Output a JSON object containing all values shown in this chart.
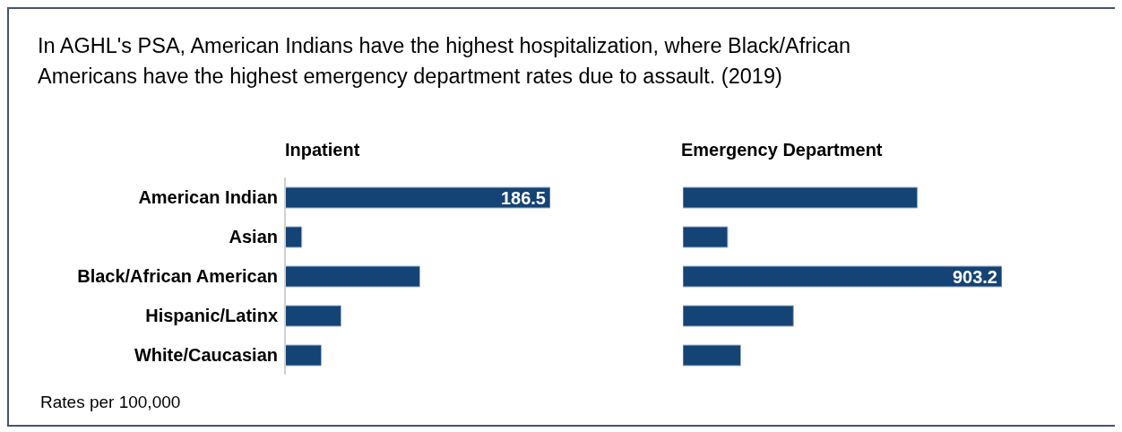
{
  "chart_data": [
    {
      "type": "bar",
      "orientation": "horizontal",
      "title": "In AGHL's PSA, American Indians have the highest hospitalization, where Black/African Americans have the highest emergency department rates due to assault. (2019)",
      "subtitle": "Inpatient",
      "categories": [
        "American Indian",
        "Asian",
        "Black/African American",
        "Hispanic/Latinx",
        "White/Caucasian"
      ],
      "values": [
        186.5,
        11.8,
        94.8,
        39.4,
        25.5
      ],
      "color": "#144375",
      "value_labels": [
        "186.5",
        null,
        null,
        null,
        null
      ],
      "annotations": [
        "Rates per 100,000"
      ]
    },
    {
      "type": "bar",
      "orientation": "horizontal",
      "title": "Emergency Department",
      "categories": [
        null,
        null,
        null,
        null,
        null
      ],
      "values": [
        664,
        126.7,
        903.2,
        313,
        163.7
      ],
      "color": "#144375",
      "value_labels": [
        null,
        null,
        "903.2",
        null,
        null
      ]
    }
  ]
}
